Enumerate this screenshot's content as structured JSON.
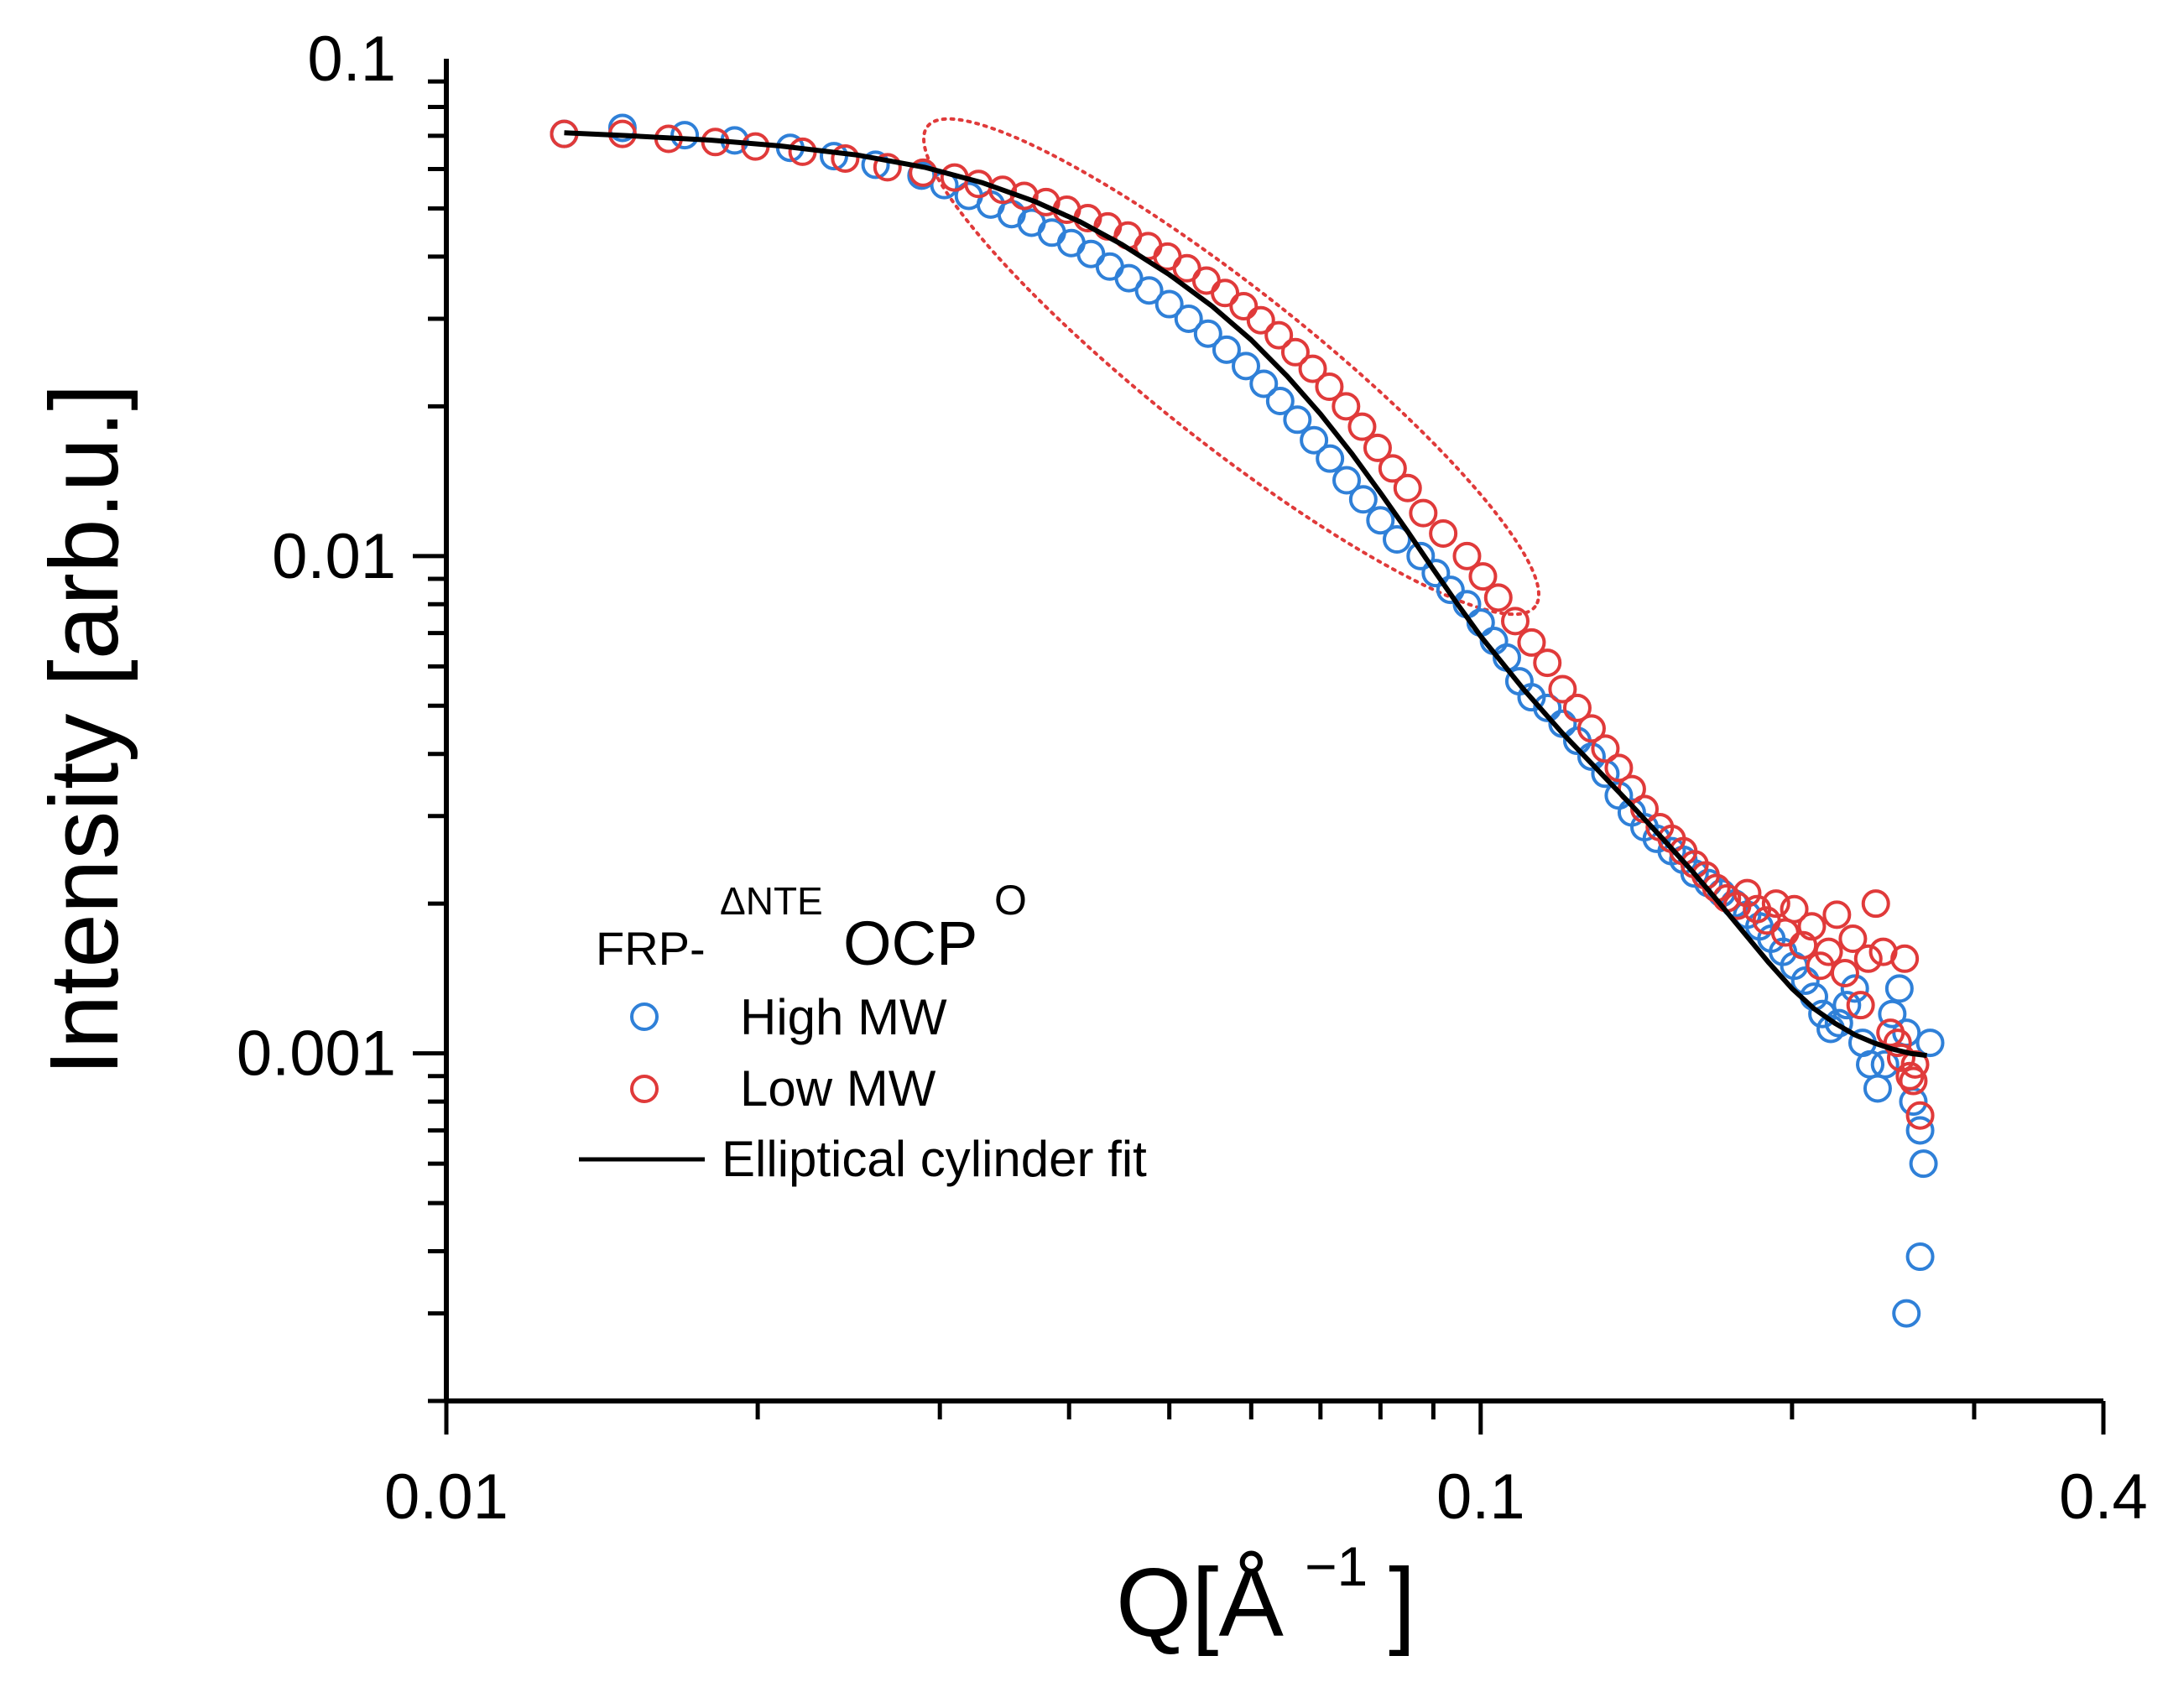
{
  "chart_data": {
    "type": "scatter",
    "xscale": "log",
    "yscale": "log",
    "xlim": [
      0.01,
      0.4
    ],
    "ylim": [
      0.0002,
      0.1
    ],
    "xticks": [
      {
        "value": 0.01,
        "label": "0.01"
      },
      {
        "value": 0.1,
        "label": "0.1"
      },
      {
        "value": 0.4,
        "label": "0.4"
      }
    ],
    "yticks": [
      {
        "value": 0.1,
        "label": "0.1"
      },
      {
        "value": 0.01,
        "label": "0.01"
      },
      {
        "value": 0.001,
        "label": "0.001"
      }
    ],
    "xlabel": {
      "main": "Q[Å",
      "sup": "−1",
      "close": "]"
    },
    "ylabel": "Intensity [arb.u.]",
    "legend": {
      "position": "lower-left",
      "title": {
        "main": "FRP-",
        "sup1": "ΔNTE",
        "mid": "OCP",
        "sup2": "O"
      }
    },
    "series": [
      {
        "name": "High MW",
        "marker": "open-circle",
        "color": "#2f80d8",
        "points": [
          [
            0.013,
            0.0706
          ],
          [
            0.0148,
            0.0726
          ],
          [
            0.017,
            0.0702
          ],
          [
            0.019,
            0.0685
          ],
          [
            0.0215,
            0.0662
          ],
          [
            0.0237,
            0.0637
          ],
          [
            0.026,
            0.0612
          ],
          [
            0.0288,
            0.0582
          ],
          [
            0.0303,
            0.0557
          ],
          [
            0.032,
            0.053
          ],
          [
            0.0336,
            0.0509
          ],
          [
            0.0352,
            0.0487
          ],
          [
            0.0368,
            0.0468
          ],
          [
            0.0385,
            0.0447
          ],
          [
            0.0402,
            0.0426
          ],
          [
            0.042,
            0.0405
          ],
          [
            0.0438,
            0.0382
          ],
          [
            0.0457,
            0.0362
          ],
          [
            0.0478,
            0.0342
          ],
          [
            0.05,
            0.0321
          ],
          [
            0.0522,
            0.03
          ],
          [
            0.0545,
            0.028
          ],
          [
            0.0568,
            0.026
          ],
          [
            0.0593,
            0.0241
          ],
          [
            0.0617,
            0.0222
          ],
          [
            0.064,
            0.0205
          ],
          [
            0.0665,
            0.0188
          ],
          [
            0.069,
            0.0171
          ],
          [
            0.0715,
            0.0157
          ],
          [
            0.0742,
            0.0142
          ],
          [
            0.077,
            0.013
          ],
          [
            0.08,
            0.0118
          ],
          [
            0.083,
            0.0108
          ],
          [
            0.0875,
            0.01
          ],
          [
            0.0905,
            0.00924
          ],
          [
            0.0935,
            0.00855
          ],
          [
            0.097,
            0.008
          ],
          [
            0.1,
            0.00735
          ],
          [
            0.103,
            0.00675
          ],
          [
            0.106,
            0.00625
          ],
          [
            0.109,
            0.0056
          ],
          [
            0.112,
            0.0052
          ],
          [
            0.116,
            0.00495
          ],
          [
            0.12,
            0.0046
          ],
          [
            0.124,
            0.00425
          ],
          [
            0.128,
            0.00395
          ],
          [
            0.132,
            0.00365
          ],
          [
            0.136,
            0.0033
          ],
          [
            0.14,
            0.00305
          ],
          [
            0.144,
            0.00285
          ],
          [
            0.148,
            0.0027
          ],
          [
            0.153,
            0.00255
          ],
          [
            0.157,
            0.00245
          ],
          [
            0.161,
            0.0023
          ],
          [
            0.166,
            0.0022
          ],
          [
            0.171,
            0.0021
          ],
          [
            0.176,
            0.002
          ],
          [
            0.181,
            0.0019
          ],
          [
            0.186,
            0.0018
          ],
          [
            0.191,
            0.0017
          ],
          [
            0.196,
            0.0016
          ],
          [
            0.201,
            0.0015
          ],
          [
            0.206,
            0.0014
          ],
          [
            0.21,
            0.0013
          ],
          [
            0.214,
            0.0012
          ],
          [
            0.218,
            0.00112
          ],
          [
            0.222,
            0.00115
          ],
          [
            0.226,
            0.00125
          ],
          [
            0.23,
            0.00135
          ],
          [
            0.234,
            0.00105
          ],
          [
            0.238,
            0.00095
          ],
          [
            0.242,
            0.00085
          ],
          [
            0.246,
            0.00095
          ],
          [
            0.25,
            0.0012
          ],
          [
            0.254,
            0.00135
          ],
          [
            0.258,
            0.0011
          ],
          [
            0.262,
            0.0008
          ],
          [
            0.266,
            0.0007
          ],
          [
            0.268,
            0.0006
          ],
          [
            0.266,
            0.00039
          ],
          [
            0.258,
            0.0003
          ],
          [
            0.272,
            0.00105
          ]
        ]
      },
      {
        "name": "Low MW",
        "marker": "open-circle",
        "color": "#e03a3a",
        "points": [
          [
            0.013,
            0.0706
          ],
          [
            0.0148,
            0.0706
          ],
          [
            0.0164,
            0.069
          ],
          [
            0.0182,
            0.068
          ],
          [
            0.0199,
            0.0666
          ],
          [
            0.0221,
            0.065
          ],
          [
            0.0243,
            0.063
          ],
          [
            0.0267,
            0.0605
          ],
          [
            0.0289,
            0.059
          ],
          [
            0.031,
            0.0577
          ],
          [
            0.0327,
            0.056
          ],
          [
            0.0345,
            0.0545
          ],
          [
            0.0362,
            0.053
          ],
          [
            0.038,
            0.0515
          ],
          [
            0.0398,
            0.0497
          ],
          [
            0.0417,
            0.0478
          ],
          [
            0.0436,
            0.046
          ],
          [
            0.0456,
            0.0441
          ],
          [
            0.0477,
            0.042
          ],
          [
            0.0498,
            0.04
          ],
          [
            0.052,
            0.0379
          ],
          [
            0.0543,
            0.0358
          ],
          [
            0.0566,
            0.0338
          ],
          [
            0.059,
            0.0318
          ],
          [
            0.0613,
            0.0298
          ],
          [
            0.0638,
            0.0278
          ],
          [
            0.0662,
            0.0257
          ],
          [
            0.0688,
            0.0238
          ],
          [
            0.0714,
            0.0219
          ],
          [
            0.0741,
            0.02
          ],
          [
            0.0768,
            0.0182
          ],
          [
            0.0795,
            0.0165
          ],
          [
            0.0822,
            0.015
          ],
          [
            0.085,
            0.0137
          ],
          [
            0.088,
            0.0122
          ],
          [
            0.092,
            0.0111
          ],
          [
            0.097,
            0.01
          ],
          [
            0.1005,
            0.0091
          ],
          [
            0.104,
            0.00825
          ],
          [
            0.108,
            0.0074
          ],
          [
            0.112,
            0.0067
          ],
          [
            0.116,
            0.0061
          ],
          [
            0.12,
            0.0054
          ],
          [
            0.124,
            0.00495
          ],
          [
            0.128,
            0.0045
          ],
          [
            0.132,
            0.0041
          ],
          [
            0.136,
            0.00375
          ],
          [
            0.14,
            0.0034
          ],
          [
            0.144,
            0.0031
          ],
          [
            0.149,
            0.00285
          ],
          [
            0.153,
            0.0027
          ],
          [
            0.157,
            0.00255
          ],
          [
            0.161,
            0.0024
          ],
          [
            0.165,
            0.00228
          ],
          [
            0.169,
            0.00215
          ],
          [
            0.173,
            0.00205
          ],
          [
            0.177,
            0.00198
          ],
          [
            0.181,
            0.0021
          ],
          [
            0.185,
            0.00195
          ],
          [
            0.189,
            0.00185
          ],
          [
            0.193,
            0.002
          ],
          [
            0.197,
            0.00175
          ],
          [
            0.201,
            0.00195
          ],
          [
            0.205,
            0.00165
          ],
          [
            0.209,
            0.0018
          ],
          [
            0.213,
            0.0015
          ],
          [
            0.217,
            0.0016
          ],
          [
            0.221,
            0.0019
          ],
          [
            0.225,
            0.00145
          ],
          [
            0.229,
            0.0017
          ],
          [
            0.233,
            0.00125
          ],
          [
            0.237,
            0.00155
          ],
          [
            0.241,
            0.002
          ],
          [
            0.245,
            0.0016
          ],
          [
            0.249,
            0.0011
          ],
          [
            0.253,
            0.00105
          ],
          [
            0.257,
            0.00155
          ],
          [
            0.26,
            0.0009
          ],
          [
            0.263,
            0.00095
          ],
          [
            0.266,
            0.00075
          ],
          [
            0.255,
            0.00098
          ],
          [
            0.262,
            0.00088
          ]
        ]
      },
      {
        "name": "Elliptical cylinder fit",
        "marker": "line",
        "color": "#000000",
        "points": [
          [
            0.013,
            0.071
          ],
          [
            0.015,
            0.07
          ],
          [
            0.018,
            0.0686
          ],
          [
            0.021,
            0.0668
          ],
          [
            0.025,
            0.064
          ],
          [
            0.029,
            0.0605
          ],
          [
            0.033,
            0.0563
          ],
          [
            0.037,
            0.0517
          ],
          [
            0.041,
            0.047
          ],
          [
            0.045,
            0.0423
          ],
          [
            0.05,
            0.0368
          ],
          [
            0.055,
            0.0318
          ],
          [
            0.06,
            0.0272
          ],
          [
            0.065,
            0.023
          ],
          [
            0.07,
            0.0193
          ],
          [
            0.075,
            0.0161
          ],
          [
            0.08,
            0.0134
          ],
          [
            0.085,
            0.0112
          ],
          [
            0.09,
            0.0094
          ],
          [
            0.095,
            0.008
          ],
          [
            0.1,
            0.0069
          ],
          [
            0.11,
            0.0054
          ],
          [
            0.12,
            0.0044
          ],
          [
            0.13,
            0.0037
          ],
          [
            0.14,
            0.00315
          ],
          [
            0.15,
            0.0027
          ],
          [
            0.16,
            0.00233
          ],
          [
            0.17,
            0.00201
          ],
          [
            0.18,
            0.00174
          ],
          [
            0.19,
            0.00152
          ],
          [
            0.2,
            0.00135
          ],
          [
            0.21,
            0.00123
          ],
          [
            0.22,
            0.00115
          ],
          [
            0.23,
            0.00109
          ],
          [
            0.24,
            0.00105
          ],
          [
            0.25,
            0.00102
          ],
          [
            0.26,
            0.001
          ],
          [
            0.27,
            0.00099
          ]
        ]
      }
    ],
    "annotations": [
      {
        "type": "ellipse",
        "style": "dotted",
        "color": "#e03a3a",
        "covers": "Q 0.03–0.11, intensity 0.008–0.07"
      }
    ]
  }
}
